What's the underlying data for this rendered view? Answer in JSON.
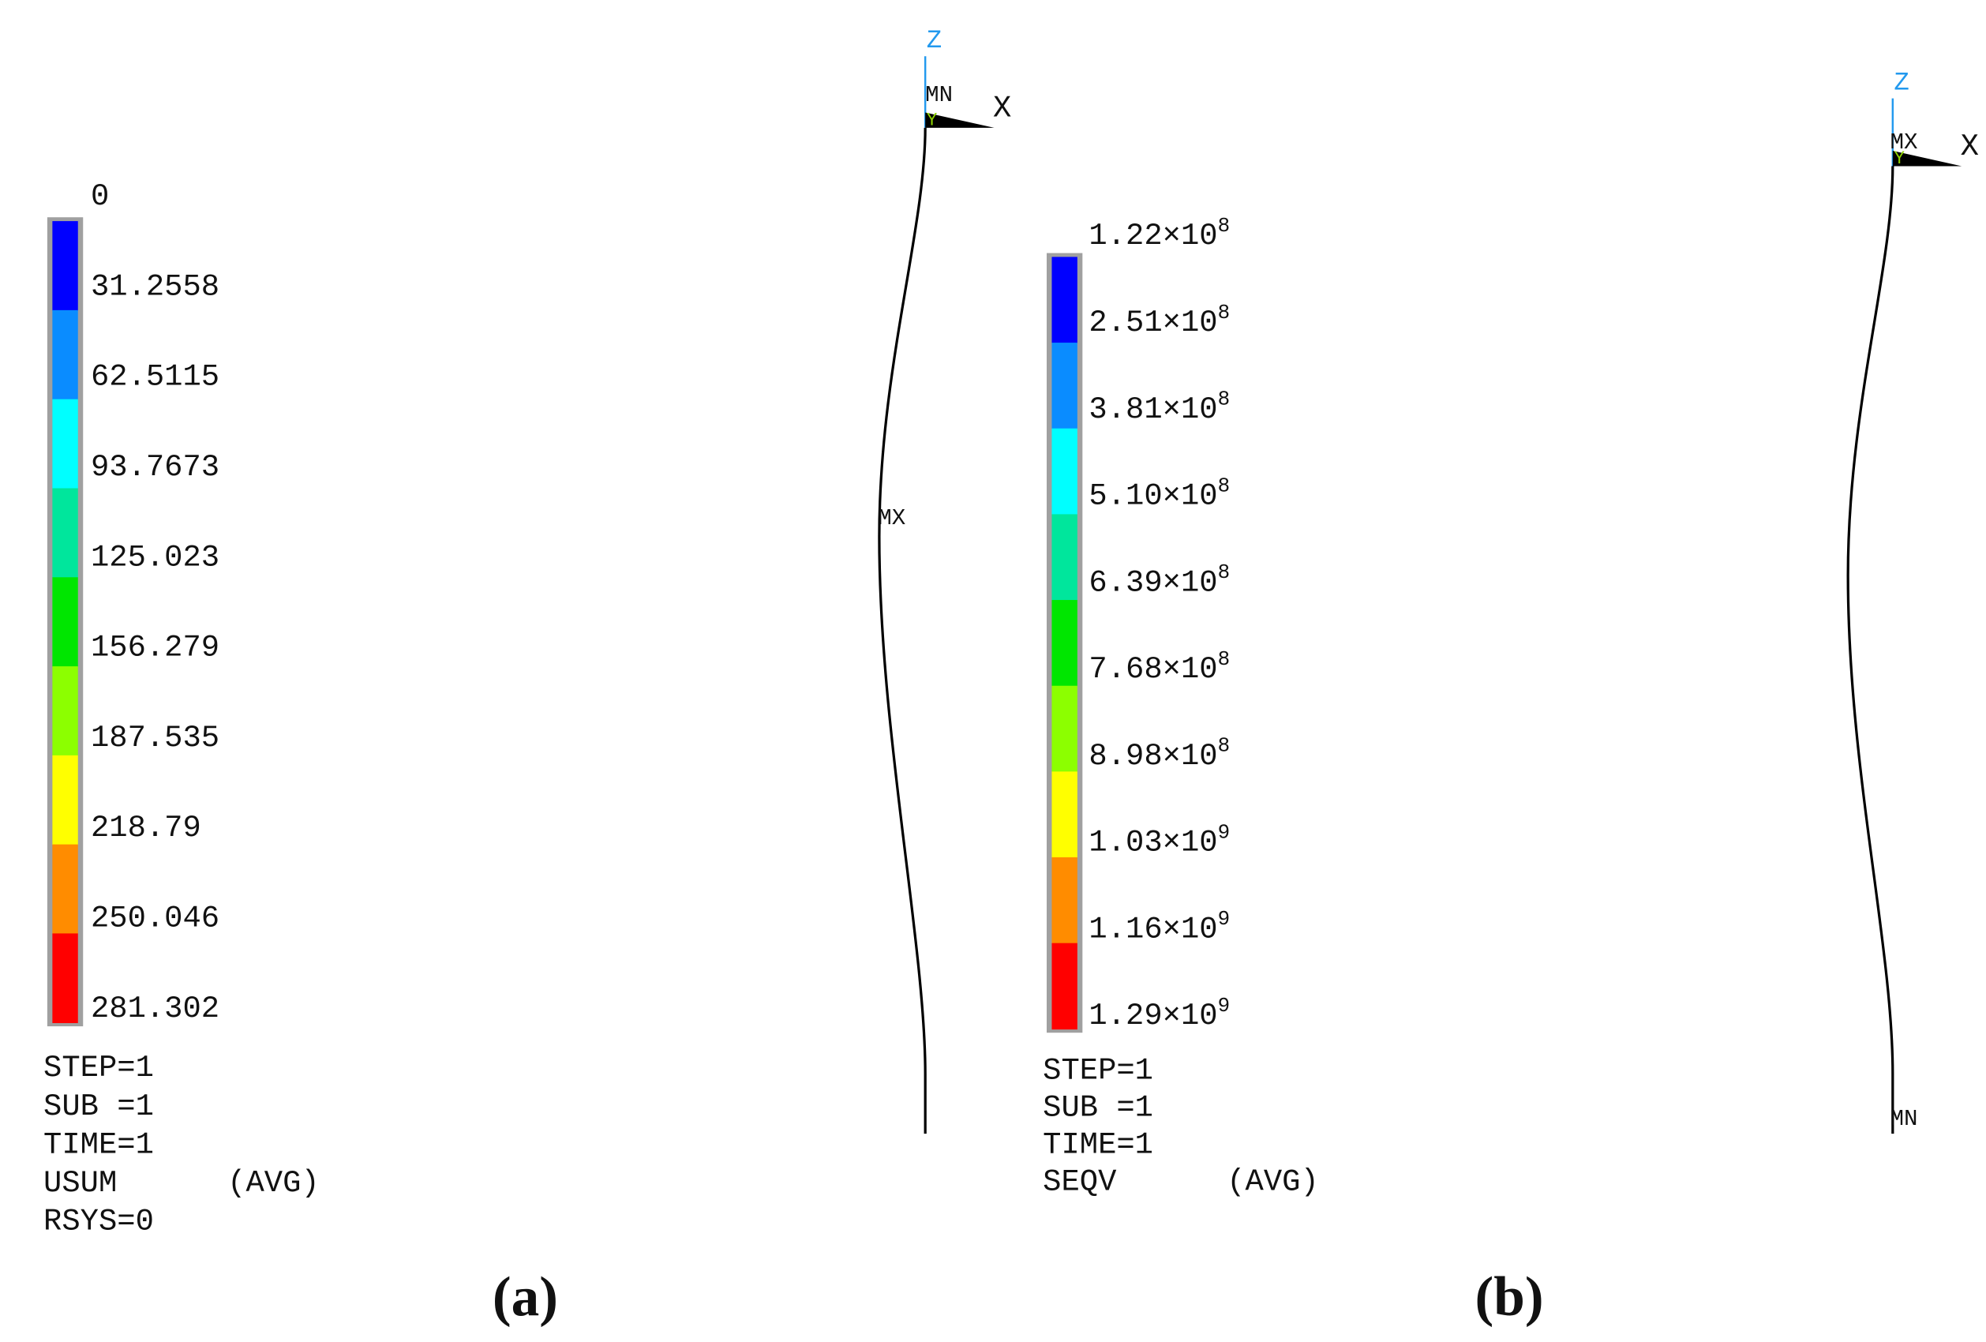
{
  "panels": [
    {
      "caption": "(a)",
      "legend": {
        "labels": [
          {
            "text": "0"
          },
          {
            "text": "31.2558"
          },
          {
            "text": "62.5115"
          },
          {
            "text": "93.7673"
          },
          {
            "text": "125.023"
          },
          {
            "text": "156.279"
          },
          {
            "text": "187.535"
          },
          {
            "text": "218.79"
          },
          {
            "text": "250.046"
          },
          {
            "text": "281.302"
          }
        ],
        "colors": [
          "#0000ff",
          "#0a8cff",
          "#00ffff",
          "#00e69c",
          "#00e600",
          "#8cff00",
          "#ffff00",
          "#ff8c00",
          "#ff0000"
        ]
      },
      "info": [
        "STEP=1",
        "SUB =1",
        "TIME=1",
        "USUM      (AVG)",
        "RSYS=0"
      ],
      "axis": {
        "z": "Z",
        "x": "X",
        "y": "Y"
      },
      "markers": [
        "MN",
        "MX"
      ]
    },
    {
      "caption": "(b)",
      "legend": {
        "labels": [
          {
            "mantissa": "1.22×10",
            "exponent": "8"
          },
          {
            "mantissa": "2.51×10",
            "exponent": "8"
          },
          {
            "mantissa": "3.81×10",
            "exponent": "8"
          },
          {
            "mantissa": "5.10×10",
            "exponent": "8"
          },
          {
            "mantissa": "6.39×10",
            "exponent": "8"
          },
          {
            "mantissa": "7.68×10",
            "exponent": "8"
          },
          {
            "mantissa": "8.98×10",
            "exponent": "8"
          },
          {
            "mantissa": "1.03×10",
            "exponent": "9"
          },
          {
            "mantissa": "1.16×10",
            "exponent": "9"
          },
          {
            "mantissa": "1.29×10",
            "exponent": "9"
          }
        ],
        "colors": [
          "#0000ff",
          "#0a8cff",
          "#00ffff",
          "#00e69c",
          "#00e600",
          "#8cff00",
          "#ffff00",
          "#ff8c00",
          "#ff0000"
        ]
      },
      "info": [
        "STEP=1",
        "SUB =1",
        "TIME=1",
        "SEQV      (AVG)"
      ],
      "axis": {
        "z": "Z",
        "x": "X",
        "y": "Y"
      },
      "markers": [
        "MX",
        "MN"
      ]
    }
  ]
}
